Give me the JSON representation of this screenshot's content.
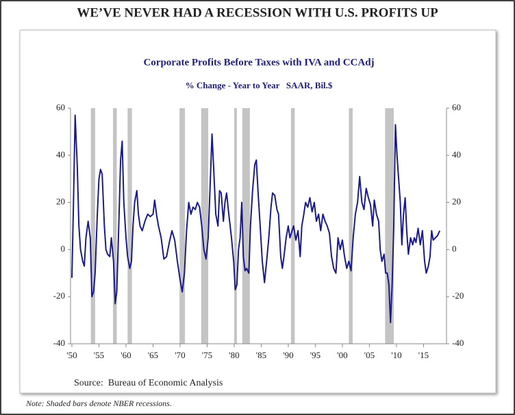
{
  "header": {
    "title": "WE’VE NEVER HAD A RECESSION WITH U.S. PROFITS UP"
  },
  "chart_data": {
    "type": "line",
    "title": "Corporate Profits Before Taxes with IVA and CCAdj",
    "subtitle": "% Change - Year to Year   SAAR, Bil.$",
    "source": "Source:  Bureau of Economic Analysis",
    "xlim": [
      1949.75,
      2019.25
    ],
    "xticks": [
      {
        "value": 1950,
        "label": "'50"
      },
      {
        "value": 1955,
        "label": "'55"
      },
      {
        "value": 1960,
        "label": "'60"
      },
      {
        "value": 1965,
        "label": "'65"
      },
      {
        "value": 1970,
        "label": "'70"
      },
      {
        "value": 1975,
        "label": "'75"
      },
      {
        "value": 1980,
        "label": "'80"
      },
      {
        "value": 1985,
        "label": "'85"
      },
      {
        "value": 1990,
        "label": "'90"
      },
      {
        "value": 1995,
        "label": "'95"
      },
      {
        "value": 2000,
        "label": "'00"
      },
      {
        "value": 2005,
        "label": "'05"
      },
      {
        "value": 2010,
        "label": "'10"
      },
      {
        "value": 2015,
        "label": "'15"
      }
    ],
    "ylim": [
      -40,
      60
    ],
    "yticks": [
      -40,
      -20,
      0,
      20,
      40,
      60
    ],
    "y2lim": [
      -40,
      60
    ],
    "y2ticks": [
      -40,
      -20,
      0,
      20,
      40,
      60
    ],
    "recessions": [
      [
        1953.5,
        1954.3
      ],
      [
        1957.6,
        1958.3
      ],
      [
        1960.3,
        1961.1
      ],
      [
        1969.9,
        1970.9
      ],
      [
        1973.9,
        1975.2
      ],
      [
        1980.0,
        1980.5
      ],
      [
        1981.5,
        1982.9
      ],
      [
        1990.5,
        1991.2
      ],
      [
        2001.2,
        2001.9
      ],
      [
        2007.9,
        2009.5
      ]
    ],
    "recession_color": "#c4c4c4",
    "series": [
      {
        "color": "#1a1a8c",
        "x": [
          1950.0,
          1950.3,
          1950.6,
          1951.0,
          1951.3,
          1951.6,
          1952.0,
          1952.3,
          1952.6,
          1953.0,
          1953.4,
          1953.7,
          1954.0,
          1954.3,
          1954.7,
          1955.0,
          1955.3,
          1955.6,
          1956.0,
          1956.3,
          1956.6,
          1957.0,
          1957.3,
          1957.7,
          1958.0,
          1958.3,
          1958.6,
          1959.0,
          1959.3,
          1959.6,
          1960.0,
          1960.3,
          1960.7,
          1961.0,
          1961.3,
          1961.6,
          1962.0,
          1962.3,
          1962.6,
          1963.0,
          1963.5,
          1964.0,
          1964.5,
          1965.0,
          1965.3,
          1965.7,
          1966.0,
          1966.5,
          1967.0,
          1967.5,
          1968.0,
          1968.5,
          1969.0,
          1969.5,
          1970.0,
          1970.4,
          1970.8,
          1971.2,
          1971.6,
          1972.0,
          1972.4,
          1972.8,
          1973.2,
          1973.6,
          1974.0,
          1974.4,
          1974.8,
          1975.2,
          1975.6,
          1975.9,
          1976.2,
          1976.6,
          1977.0,
          1977.3,
          1977.6,
          1978.0,
          1978.3,
          1978.6,
          1979.0,
          1979.5,
          1979.9,
          1980.2,
          1980.5,
          1980.8,
          1981.1,
          1981.4,
          1981.7,
          1982.0,
          1982.3,
          1982.7,
          1983.0,
          1983.4,
          1983.8,
          1984.1,
          1984.4,
          1984.8,
          1985.2,
          1985.6,
          1986.0,
          1986.4,
          1986.8,
          1987.1,
          1987.5,
          1987.9,
          1988.2,
          1988.6,
          1988.9,
          1989.2,
          1989.6,
          1990.0,
          1990.3,
          1990.7,
          1991.0,
          1991.4,
          1991.8,
          1992.2,
          1992.5,
          1992.8,
          1993.2,
          1993.6,
          1994.0,
          1994.4,
          1994.8,
          1995.2,
          1995.6,
          1996.0,
          1996.4,
          1996.8,
          1997.2,
          1997.6,
          1998.0,
          1998.4,
          1998.8,
          1999.2,
          1999.6,
          2000.0,
          2000.4,
          2000.8,
          2001.2,
          2001.6,
          2002.0,
          2002.4,
          2002.8,
          2003.2,
          2003.6,
          2004.0,
          2004.4,
          2004.8,
          2005.2,
          2005.6,
          2005.9,
          2006.3,
          2006.7,
          2007.0,
          2007.3,
          2007.7,
          2008.0,
          2008.3,
          2008.6,
          2008.9,
          2009.2,
          2009.5,
          2009.8,
          2010.1,
          2010.4,
          2010.7,
          2011.0,
          2011.3,
          2011.6,
          2011.9,
          2012.2,
          2012.6,
          2013.0,
          2013.3,
          2013.6,
          2014.0,
          2014.4,
          2014.8,
          2015.2,
          2015.5,
          2015.9,
          2016.2,
          2016.5,
          2016.8,
          2017.2,
          2017.6,
          2018.0
        ],
        "values": [
          -12,
          20,
          57,
          35,
          10,
          0,
          -5,
          -7,
          5,
          12,
          5,
          -20,
          -18,
          -10,
          15,
          30,
          34,
          32,
          10,
          0,
          -2,
          -3,
          5,
          -5,
          -23,
          -18,
          5,
          38,
          46,
          20,
          5,
          -3,
          -8,
          -5,
          10,
          20,
          25,
          15,
          10,
          8,
          12,
          15,
          14,
          15,
          21,
          14,
          10,
          5,
          -4,
          -3,
          3,
          8,
          4,
          -5,
          -13,
          -18,
          -10,
          8,
          20,
          15,
          18,
          17,
          20,
          18,
          10,
          0,
          -4,
          5,
          30,
          49,
          35,
          15,
          10,
          25,
          24,
          12,
          20,
          24,
          15,
          5,
          -5,
          -17,
          -15,
          0,
          5,
          20,
          -3,
          -9,
          -8,
          -10,
          10,
          25,
          36,
          38,
          25,
          10,
          -5,
          -14,
          -5,
          5,
          18,
          24,
          23,
          17,
          15,
          -3,
          -8,
          -3,
          5,
          10,
          5,
          8,
          10,
          4,
          8,
          -3,
          10,
          14,
          20,
          18,
          22,
          16,
          20,
          12,
          15,
          8,
          15,
          12,
          10,
          7,
          -3,
          -8,
          -10,
          5,
          0,
          4,
          -3,
          -8,
          -5,
          -9,
          5,
          15,
          20,
          31,
          20,
          17,
          26,
          22,
          19,
          10,
          21,
          15,
          12,
          0,
          -5,
          -2,
          -10,
          -10,
          -15,
          -31,
          -15,
          10,
          53,
          40,
          30,
          20,
          2,
          15,
          22,
          8,
          -2,
          5,
          2,
          5,
          3,
          9,
          2,
          8,
          -5,
          -10,
          -7,
          -3,
          8,
          4,
          5,
          6,
          8
        ]
      }
    ]
  },
  "note": "Note: Shaded bars denote NBER recessions."
}
